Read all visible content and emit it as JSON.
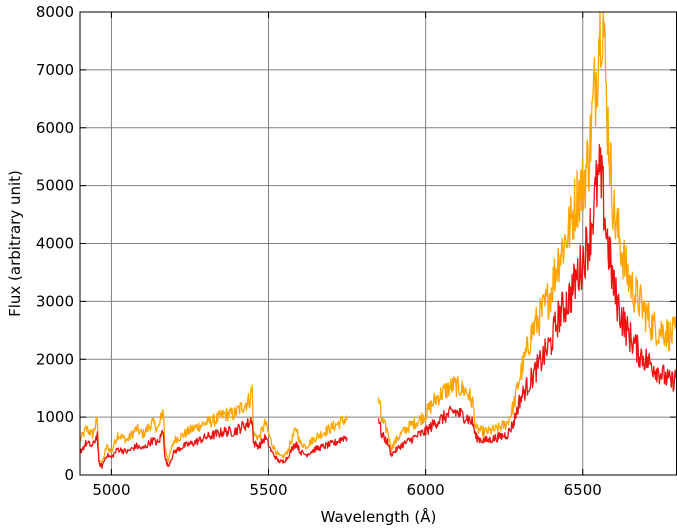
{
  "chart_data": {
    "type": "line",
    "xlabel": "Wavelength (Å)",
    "ylabel": "Flux (arbitrary unit)",
    "xlim": [
      4900,
      6800
    ],
    "ylim": [
      0,
      8000
    ],
    "xticks": [
      5000,
      5500,
      6000,
      6500
    ],
    "xtick_labels": [
      "5000",
      "5500",
      "6000",
      "6500"
    ],
    "yticks": [
      0,
      1000,
      2000,
      3000,
      4000,
      5000,
      6000,
      7000,
      8000
    ],
    "ytick_labels": [
      "0",
      "1000",
      "2000",
      "3000",
      "4000",
      "5000",
      "6000",
      "7000",
      "8000"
    ],
    "grid": true,
    "colors": {
      "series_orange": "#ffa500",
      "series_red": "#ee1111",
      "grid": "#808080"
    },
    "series": [
      {
        "color": "#ffa500",
        "segments": [
          [
            [
              4900,
              600
            ],
            [
              4920,
              800
            ],
            [
              4940,
              700
            ],
            [
              4955,
              950
            ],
            [
              4960,
              300
            ],
            [
              4970,
              200
            ],
            [
              4985,
              500
            ],
            [
              5000,
              400
            ],
            [
              5020,
              700
            ],
            [
              5050,
              600
            ],
            [
              5080,
              800
            ],
            [
              5100,
              700
            ],
            [
              5130,
              900
            ],
            [
              5150,
              800
            ],
            [
              5165,
              1150
            ],
            [
              5170,
              500
            ],
            [
              5180,
              250
            ],
            [
              5200,
              600
            ],
            [
              5230,
              700
            ],
            [
              5260,
              800
            ],
            [
              5300,
              900
            ],
            [
              5330,
              950
            ],
            [
              5360,
              1050
            ],
            [
              5390,
              1050
            ],
            [
              5420,
              1200
            ],
            [
              5440,
              1300
            ],
            [
              5448,
              1500
            ],
            [
              5452,
              700
            ],
            [
              5470,
              650
            ],
            [
              5490,
              900
            ],
            [
              5510,
              550
            ],
            [
              5530,
              350
            ],
            [
              5545,
              300
            ],
            [
              5560,
              400
            ],
            [
              5580,
              700
            ],
            [
              5590,
              800
            ],
            [
              5600,
              550
            ],
            [
              5620,
              500
            ],
            [
              5650,
              650
            ],
            [
              5680,
              750
            ],
            [
              5710,
              850
            ],
            [
              5740,
              950
            ],
            [
              5750,
              950
            ]
          ],
          [
            [
              5850,
              1350
            ],
            [
              5860,
              950
            ],
            [
              5880,
              750
            ],
            [
              5890,
              450
            ],
            [
              5900,
              550
            ],
            [
              5920,
              700
            ],
            [
              5950,
              850
            ],
            [
              5980,
              950
            ],
            [
              6000,
              1050
            ],
            [
              6030,
              1300
            ],
            [
              6060,
              1450
            ],
            [
              6090,
              1550
            ],
            [
              6110,
              1500
            ],
            [
              6130,
              1450
            ],
            [
              6150,
              1250
            ],
            [
              6160,
              800
            ],
            [
              6180,
              750
            ],
            [
              6200,
              750
            ],
            [
              6230,
              800
            ],
            [
              6260,
              900
            ],
            [
              6280,
              1200
            ],
            [
              6300,
              1700
            ],
            [
              6320,
              2100
            ],
            [
              6340,
              2500
            ],
            [
              6360,
              2700
            ],
            [
              6380,
              2900
            ],
            [
              6400,
              3200
            ],
            [
              6420,
              3700
            ],
            [
              6440,
              4000
            ],
            [
              6460,
              4300
            ],
            [
              6480,
              4800
            ],
            [
              6500,
              5000
            ],
            [
              6520,
              5500
            ],
            [
              6535,
              6500
            ],
            [
              6545,
              7000
            ],
            [
              6555,
              8000
            ],
            [
              6565,
              8000
            ],
            [
              6575,
              6500
            ],
            [
              6590,
              5200
            ],
            [
              6600,
              4500
            ],
            [
              6620,
              4000
            ],
            [
              6640,
              3500
            ],
            [
              6660,
              3200
            ],
            [
              6680,
              3000
            ],
            [
              6700,
              2800
            ],
            [
              6720,
              2600
            ],
            [
              6740,
              2500
            ],
            [
              6760,
              2500
            ],
            [
              6780,
              2400
            ],
            [
              6800,
              2500
            ]
          ]
        ]
      },
      {
        "color": "#ee1111",
        "segments": [
          [
            [
              4900,
              400
            ],
            [
              4920,
              550
            ],
            [
              4940,
              500
            ],
            [
              4955,
              700
            ],
            [
              4960,
              200
            ],
            [
              4970,
              150
            ],
            [
              4985,
              350
            ],
            [
              5000,
              300
            ],
            [
              5020,
              450
            ],
            [
              5050,
              400
            ],
            [
              5080,
              500
            ],
            [
              5100,
              450
            ],
            [
              5130,
              600
            ],
            [
              5150,
              550
            ],
            [
              5165,
              800
            ],
            [
              5170,
              300
            ],
            [
              5180,
              150
            ],
            [
              5200,
              400
            ],
            [
              5230,
              500
            ],
            [
              5260,
              550
            ],
            [
              5300,
              650
            ],
            [
              5330,
              700
            ],
            [
              5360,
              750
            ],
            [
              5390,
              750
            ],
            [
              5420,
              850
            ],
            [
              5440,
              900
            ],
            [
              5448,
              1000
            ],
            [
              5452,
              550
            ],
            [
              5470,
              500
            ],
            [
              5490,
              650
            ],
            [
              5510,
              400
            ],
            [
              5530,
              250
            ],
            [
              5545,
              220
            ],
            [
              5560,
              300
            ],
            [
              5580,
              500
            ],
            [
              5590,
              550
            ],
            [
              5600,
              400
            ],
            [
              5620,
              350
            ],
            [
              5650,
              450
            ],
            [
              5680,
              500
            ],
            [
              5710,
              550
            ],
            [
              5740,
              650
            ],
            [
              5750,
              650
            ]
          ],
          [
            [
              5850,
              1000
            ],
            [
              5860,
              700
            ],
            [
              5880,
              550
            ],
            [
              5890,
              350
            ],
            [
              5900,
              400
            ],
            [
              5920,
              500
            ],
            [
              5950,
              600
            ],
            [
              5980,
              700
            ],
            [
              6000,
              750
            ],
            [
              6030,
              900
            ],
            [
              6060,
              1000
            ],
            [
              6090,
              1100
            ],
            [
              6110,
              1050
            ],
            [
              6130,
              1000
            ],
            [
              6150,
              900
            ],
            [
              6160,
              650
            ],
            [
              6180,
              600
            ],
            [
              6200,
              600
            ],
            [
              6230,
              650
            ],
            [
              6260,
              700
            ],
            [
              6280,
              900
            ],
            [
              6300,
              1300
            ],
            [
              6320,
              1500
            ],
            [
              6340,
              1700
            ],
            [
              6360,
              1900
            ],
            [
              6380,
              2100
            ],
            [
              6400,
              2300
            ],
            [
              6420,
              2700
            ],
            [
              6440,
              2900
            ],
            [
              6460,
              3100
            ],
            [
              6480,
              3400
            ],
            [
              6500,
              3700
            ],
            [
              6520,
              4100
            ],
            [
              6535,
              4600
            ],
            [
              6545,
              5000
            ],
            [
              6555,
              5200
            ],
            [
              6565,
              4800
            ],
            [
              6575,
              4200
            ],
            [
              6590,
              3600
            ],
            [
              6600,
              3200
            ],
            [
              6620,
              2800
            ],
            [
              6640,
              2500
            ],
            [
              6660,
              2300
            ],
            [
              6680,
              2100
            ],
            [
              6700,
              2000
            ],
            [
              6720,
              1900
            ],
            [
              6740,
              1800
            ],
            [
              6760,
              1700
            ],
            [
              6780,
              1600
            ],
            [
              6800,
              1700
            ]
          ]
        ]
      }
    ]
  }
}
